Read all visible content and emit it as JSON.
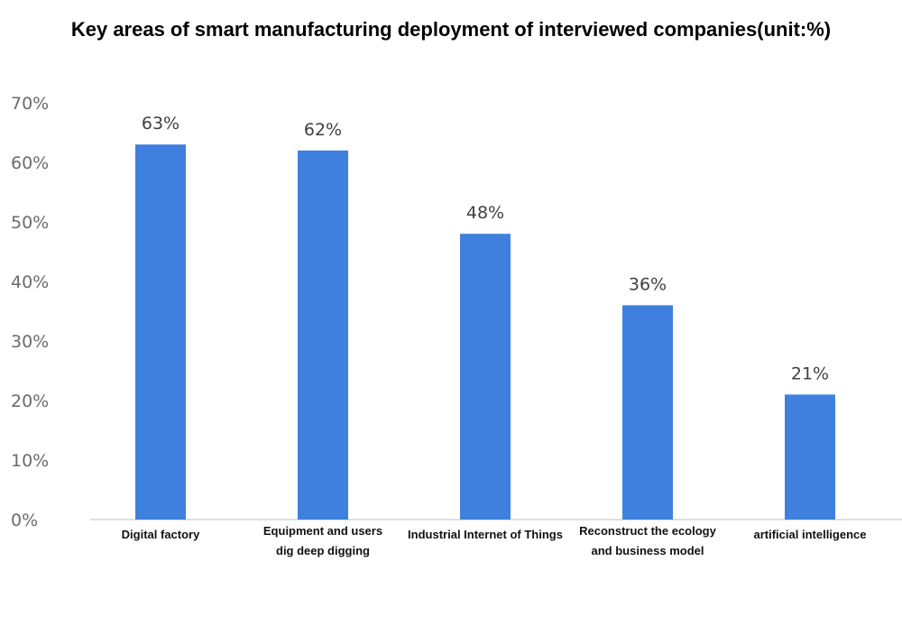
{
  "chart_data": {
    "type": "bar",
    "title": "Key areas of smart manufacturing deployment of interviewed companies(unit:%)",
    "xlabel": "",
    "ylabel": "",
    "categories": [
      "Digital factory",
      "Equipment and users dig deep digging",
      "Industrial Internet of Things",
      "Reconstruct the ecology and business model",
      "artificial intelligence"
    ],
    "category_lines": [
      [
        "Digital factory"
      ],
      [
        "Equipment and users",
        "dig deep digging"
      ],
      [
        "Industrial Internet of Things"
      ],
      [
        "Reconstruct the ecology",
        "and business model"
      ],
      [
        "artificial intelligence"
      ]
    ],
    "values": [
      63,
      62,
      48,
      36,
      21
    ],
    "data_labels": [
      "63%",
      "62%",
      "48%",
      "36%",
      "21%"
    ],
    "ylim": [
      0,
      70
    ],
    "yticks": [
      0,
      10,
      20,
      30,
      40,
      50,
      60,
      70
    ],
    "ytick_labels": [
      "0%",
      "10%",
      "20%",
      "30%",
      "40%",
      "50%",
      "60%",
      "70%"
    ],
    "bar_color": "#3f80de",
    "axis_color": "#bfbfbf",
    "grid": false,
    "legend": "none"
  }
}
